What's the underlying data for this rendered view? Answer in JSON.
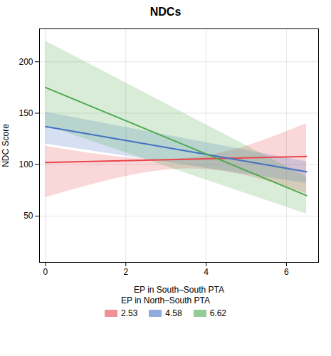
{
  "chart_data": {
    "type": "line",
    "title": "NDCs",
    "xlabel": "EP in South–South PTA",
    "ylabel": "NDC Score",
    "xlim": [
      -0.15,
      6.8
    ],
    "ylim": [
      5,
      232
    ],
    "xticks": [
      0,
      2,
      4,
      6
    ],
    "yticks": [
      50,
      100,
      150,
      200
    ],
    "grid": true,
    "legend": "bottom",
    "legend_title": "EP in North–South PTA",
    "series": [
      {
        "name": "2.53",
        "color": "#e8474c",
        "x": [
          0,
          6.5
        ],
        "values": [
          102,
          108
        ],
        "ci": {
          "x": [
            0,
            3.5,
            6.5
          ],
          "upper": [
            118,
            106,
            140
          ],
          "lower": [
            68,
            96,
            72
          ]
        }
      },
      {
        "name": "4.58",
        "color": "#4472c4",
        "x": [
          0,
          6.5
        ],
        "values": [
          137,
          93
        ],
        "ci": {
          "x": [
            0,
            6.5
          ],
          "upper": [
            151,
            103
          ],
          "lower": [
            120,
            82
          ]
        }
      },
      {
        "name": "6.62",
        "color": "#4ea84e",
        "x": [
          0,
          6.5
        ],
        "values": [
          175,
          70
        ],
        "ci": {
          "x": [
            0,
            6.5
          ],
          "upper": [
            220,
            88
          ],
          "lower": [
            138,
            52
          ]
        }
      }
    ]
  }
}
